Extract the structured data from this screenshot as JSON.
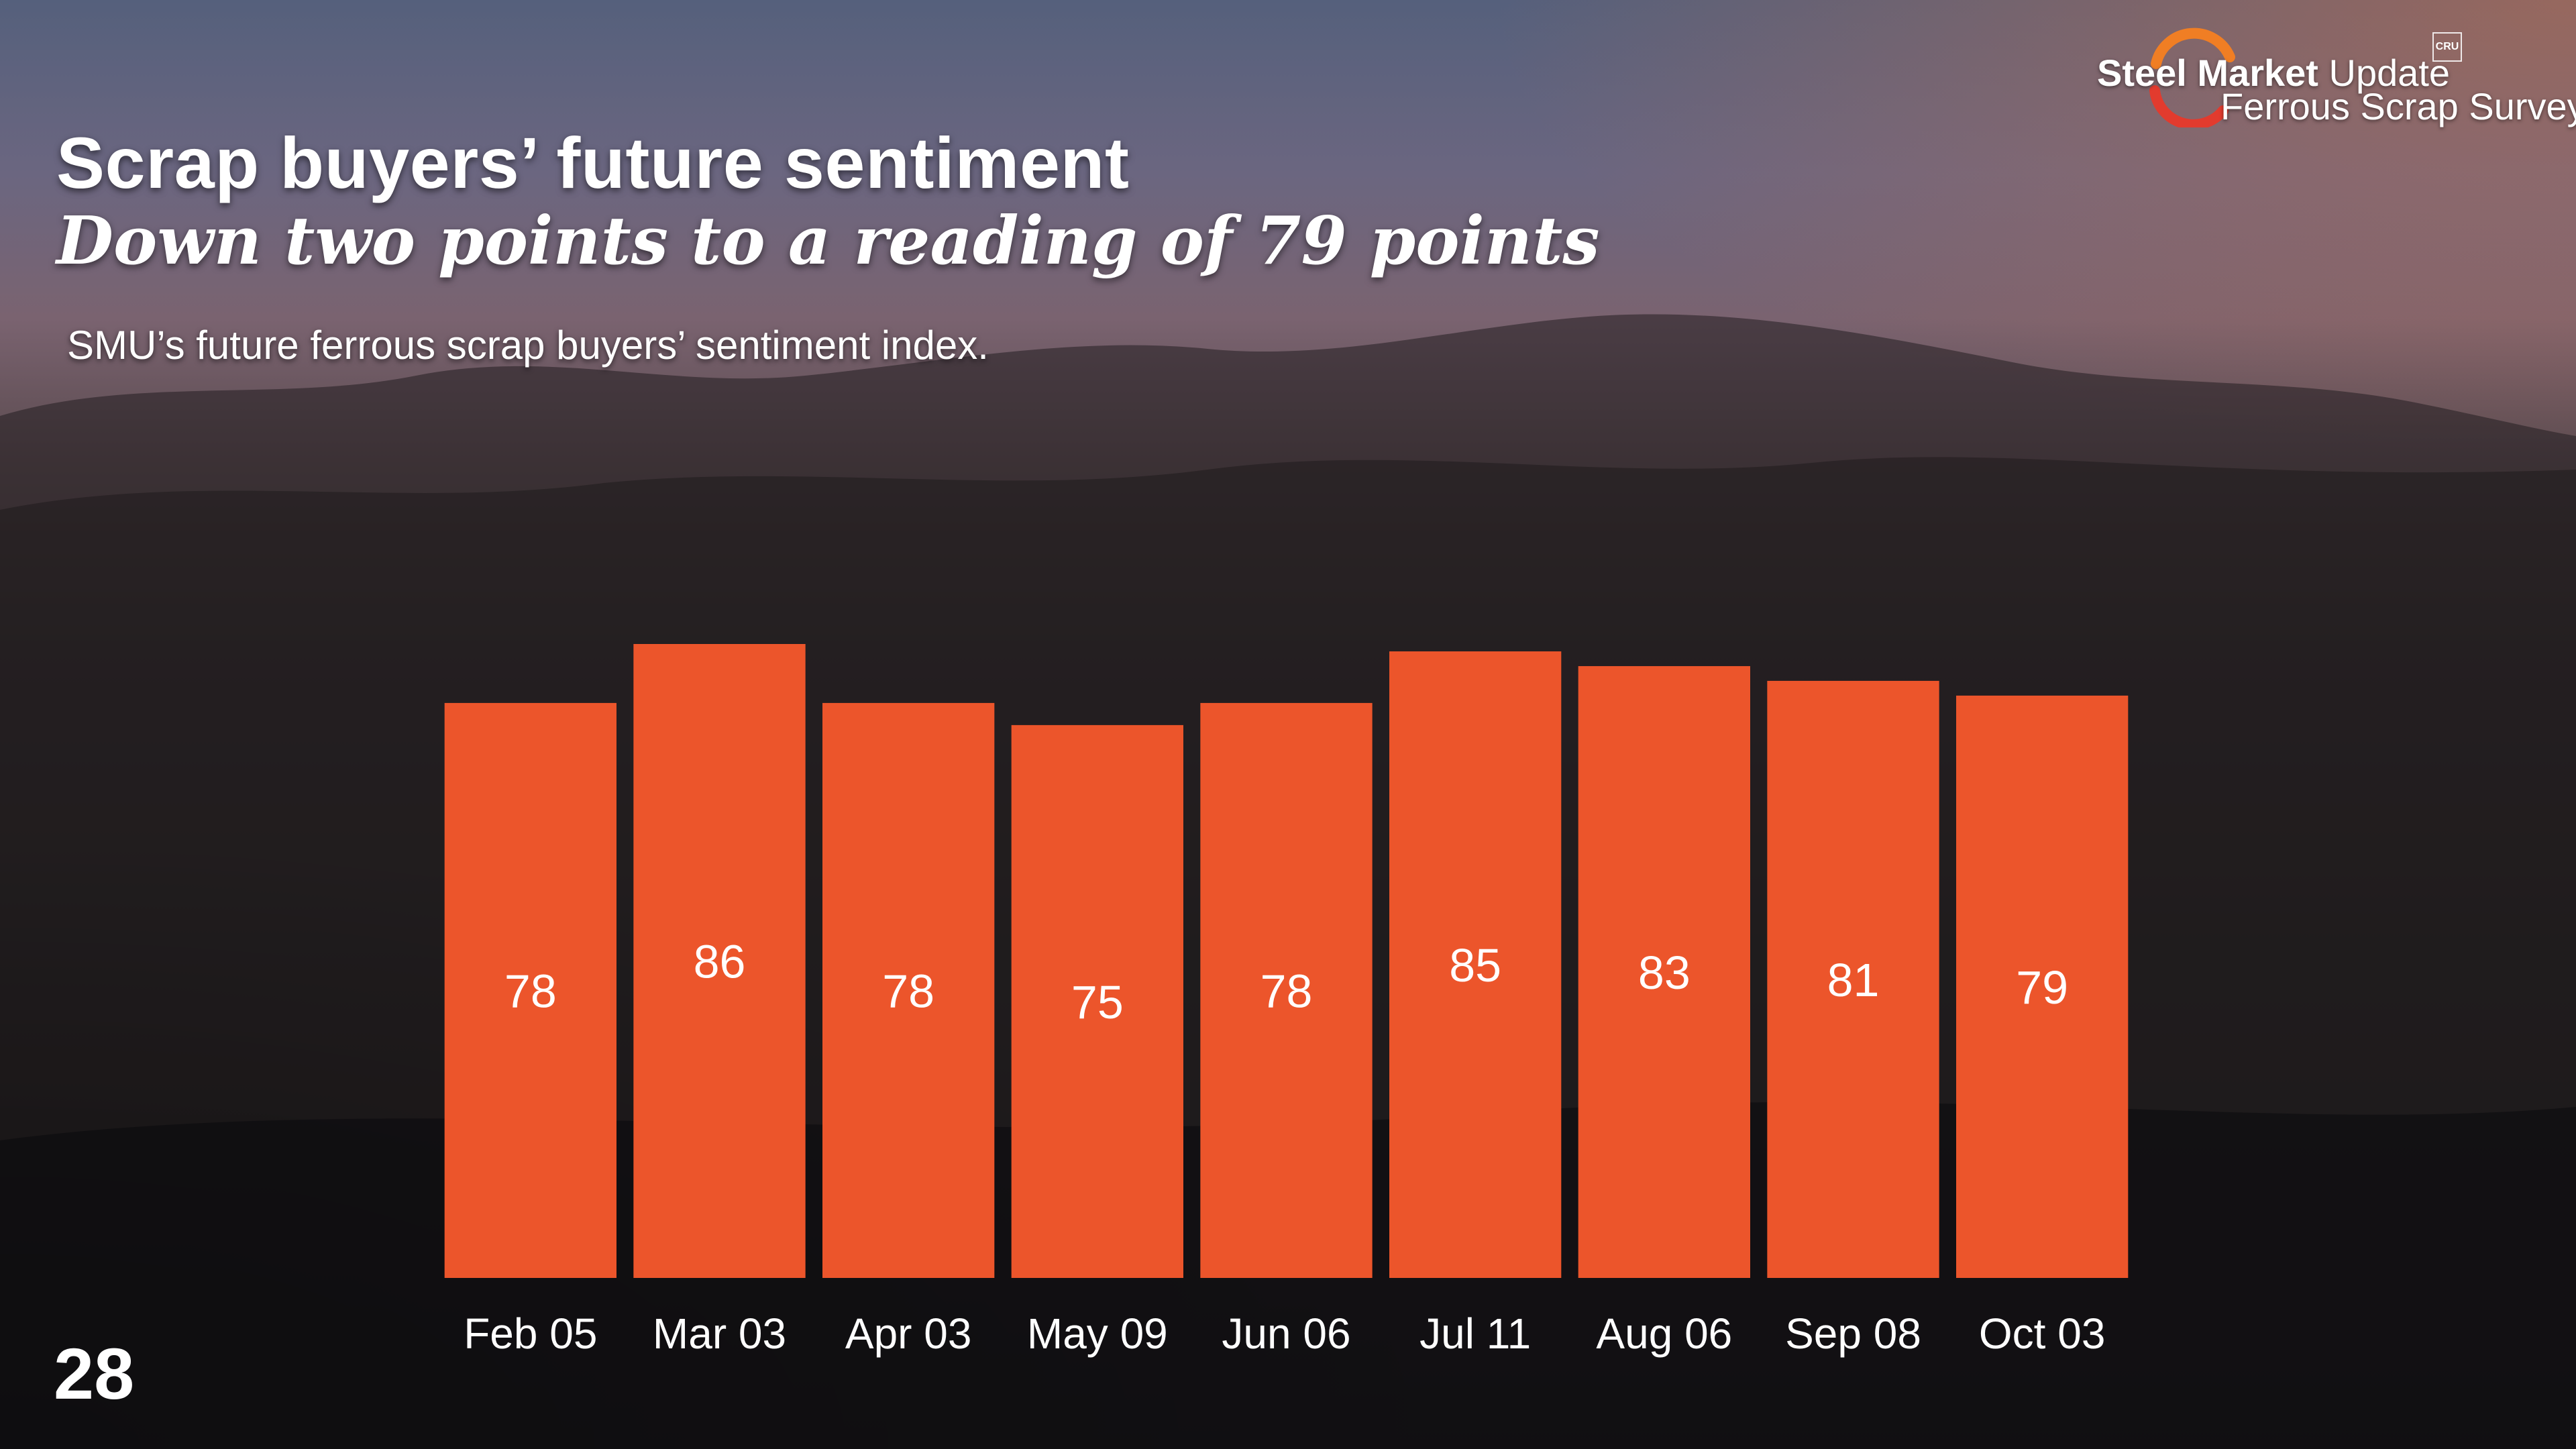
{
  "header": {
    "title": "Scrap buyers’ future sentiment",
    "subtitle": "Down two points to a reading of 79 points",
    "caption": "SMU’s future ferrous scrap buyers’ sentiment index."
  },
  "logo": {
    "brand_bold": "Steel Market",
    "brand_light": "Update",
    "product": "Ferrous Scrap Survey",
    "badge": "CRU"
  },
  "page_number": "28",
  "colors": {
    "bar": "#EC552B",
    "logo_orange": "#F07E24",
    "logo_red": "#E23B2E"
  },
  "chart_data": {
    "type": "bar",
    "title": "SMU’s future ferrous scrap buyers’ sentiment index.",
    "categories": [
      "Feb 05",
      "Mar 03",
      "Apr 03",
      "May 09",
      "Jun 06",
      "Jul 11",
      "Aug 06",
      "Sep 08",
      "Oct 03"
    ],
    "values": [
      78,
      86,
      78,
      75,
      78,
      85,
      83,
      81,
      79
    ],
    "xlabel": "",
    "ylabel": "",
    "ylim": [
      0,
      86
    ],
    "grid": false,
    "data_labels": true
  }
}
